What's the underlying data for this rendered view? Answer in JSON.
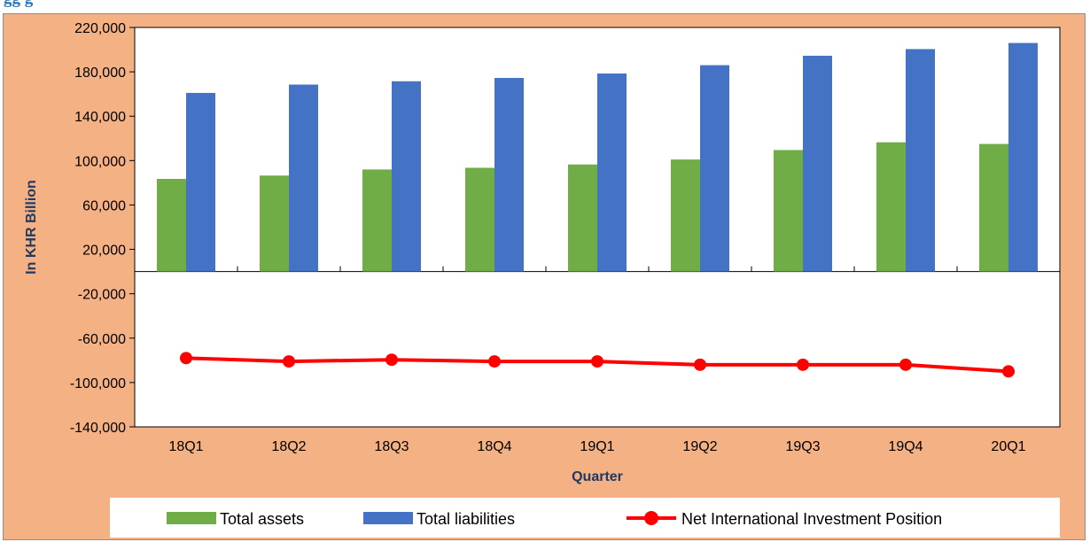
{
  "caption": {
    "text": "gg g"
  },
  "chart_data": {
    "type": "bar",
    "categories": [
      "18Q1",
      "18Q2",
      "18Q3",
      "18Q4",
      "19Q1",
      "19Q2",
      "19Q3",
      "19Q4",
      "20Q1"
    ],
    "series": [
      {
        "name": "Total assets",
        "kind": "bar",
        "color": "#70ad47",
        "values": [
          83500,
          86500,
          92000,
          93500,
          96500,
          101000,
          109500,
          116500,
          115000
        ]
      },
      {
        "name": "Total liabilities",
        "kind": "bar",
        "color": "#4472c4",
        "values": [
          161000,
          168500,
          171500,
          174500,
          178500,
          186000,
          194500,
          200500,
          206000
        ]
      },
      {
        "name": "Net International Investment Position",
        "kind": "line",
        "color": "#ff0000",
        "values": [
          -78000,
          -81000,
          -79500,
          -81000,
          -81000,
          -84000,
          -84000,
          -84000,
          -90000
        ]
      }
    ],
    "xlabel": "Quarter",
    "ylabel": "In KHR Billion",
    "ylim": [
      -140000,
      220000
    ],
    "yticks": [
      {
        "value": 220000,
        "label": "220,000"
      },
      {
        "value": 180000,
        "label": "180,000"
      },
      {
        "value": 140000,
        "label": "140,000"
      },
      {
        "value": 100000,
        "label": "100,000"
      },
      {
        "value": 60000,
        "label": "60,000"
      },
      {
        "value": 20000,
        "label": "20,000"
      },
      {
        "value": -20000,
        "label": "-20,000"
      },
      {
        "value": -60000,
        "label": "-60,000"
      },
      {
        "value": -100000,
        "label": "-100,000"
      },
      {
        "value": -140000,
        "label": "-140,000"
      }
    ],
    "grid": false,
    "legend_position": "bottom",
    "plot_background": "#ffffff",
    "frame_background": "#f4b183"
  }
}
